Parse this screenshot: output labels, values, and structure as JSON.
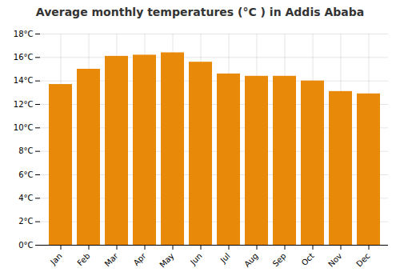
{
  "chart_data": {
    "type": "bar",
    "title": "Average monthly temperatures (°C ) in Addis Ababa",
    "categories": [
      "Jan",
      "Feb",
      "Mar",
      "Apr",
      "May",
      "Jun",
      "Jul",
      "Aug",
      "Sep",
      "Oct",
      "Nov",
      "Dec"
    ],
    "values": [
      13.7,
      15.0,
      16.1,
      16.2,
      16.4,
      15.6,
      14.6,
      14.4,
      14.4,
      14.0,
      13.1,
      12.9
    ],
    "color": "#E8890A",
    "ylim": [
      0,
      18
    ],
    "yticks": [
      {
        "value": 0,
        "label": "0°C"
      },
      {
        "value": 2,
        "label": "2°C"
      },
      {
        "value": 4,
        "label": "4°C"
      },
      {
        "value": 6,
        "label": "6°C"
      },
      {
        "value": 8,
        "label": "8°C"
      },
      {
        "value": 10,
        "label": "10°C"
      },
      {
        "value": 12,
        "label": "12°C"
      },
      {
        "value": 14,
        "label": "14°C"
      },
      {
        "value": 16,
        "label": "16°C"
      },
      {
        "value": 18,
        "label": "18°C"
      }
    ],
    "grid": true
  }
}
